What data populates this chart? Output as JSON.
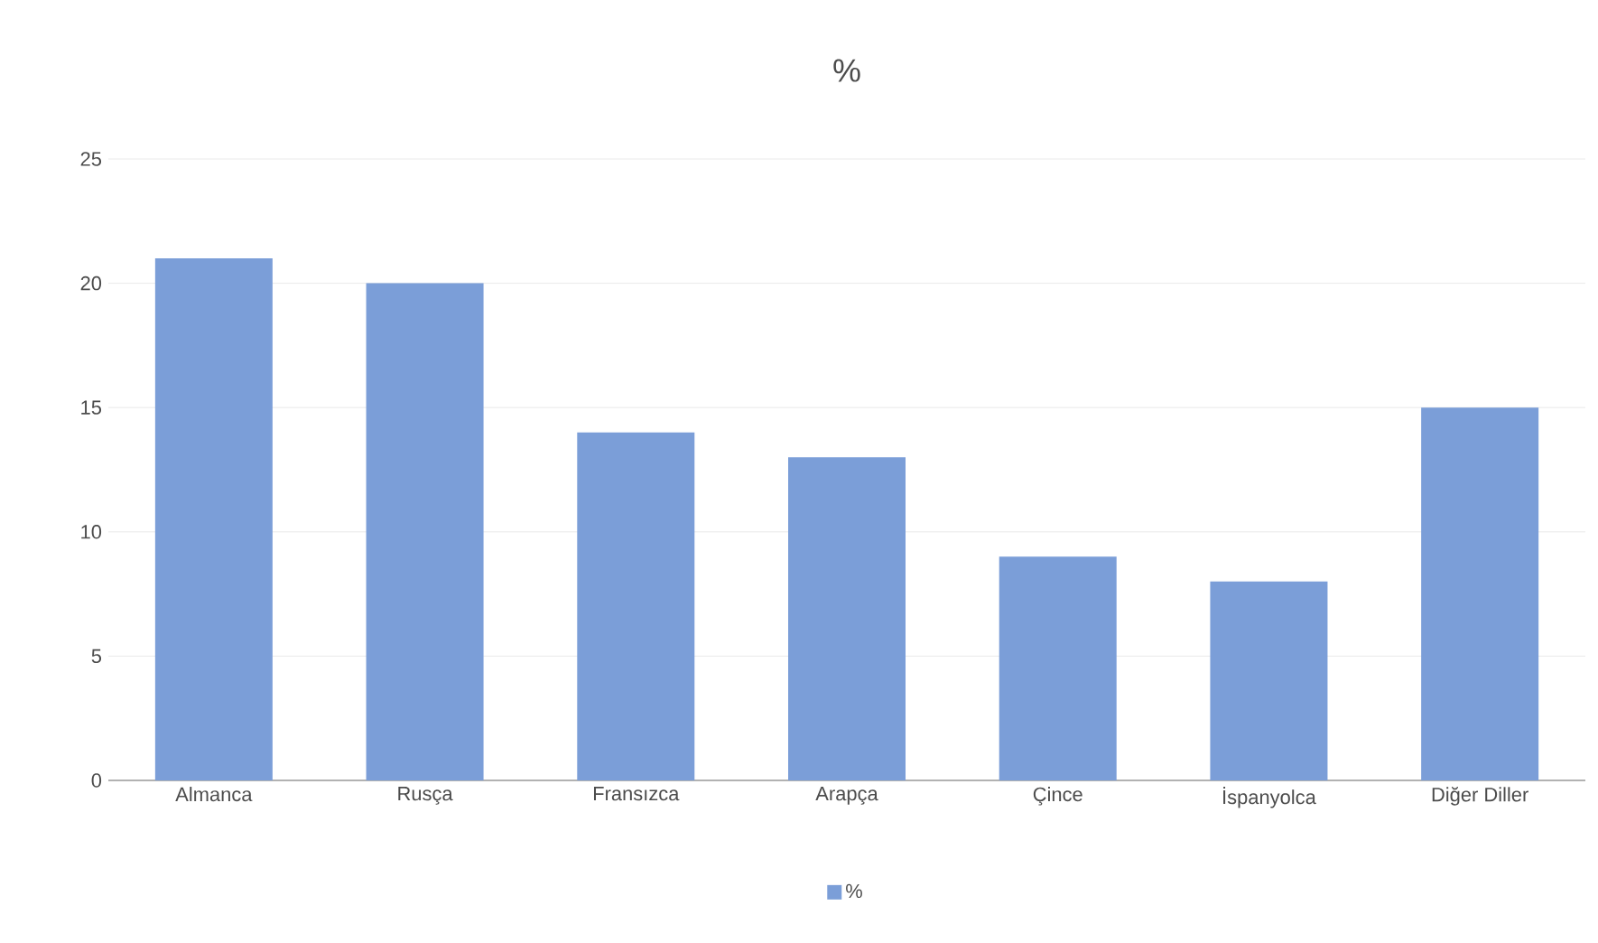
{
  "chart_data": {
    "type": "bar",
    "title": "%",
    "categories": [
      "Almanca",
      "Rusça",
      "Fransızca",
      "Arapça",
      "Çince",
      "İspanyolca",
      "Diğer Diller"
    ],
    "series": [
      {
        "name": "%",
        "color": "#7b9ed8",
        "values": [
          21,
          20,
          14,
          13,
          9,
          8,
          15
        ]
      }
    ],
    "ylim": [
      0,
      25
    ],
    "yticks": [
      0,
      5,
      10,
      15,
      20,
      25
    ],
    "grid": "y",
    "legend": "bottom"
  }
}
